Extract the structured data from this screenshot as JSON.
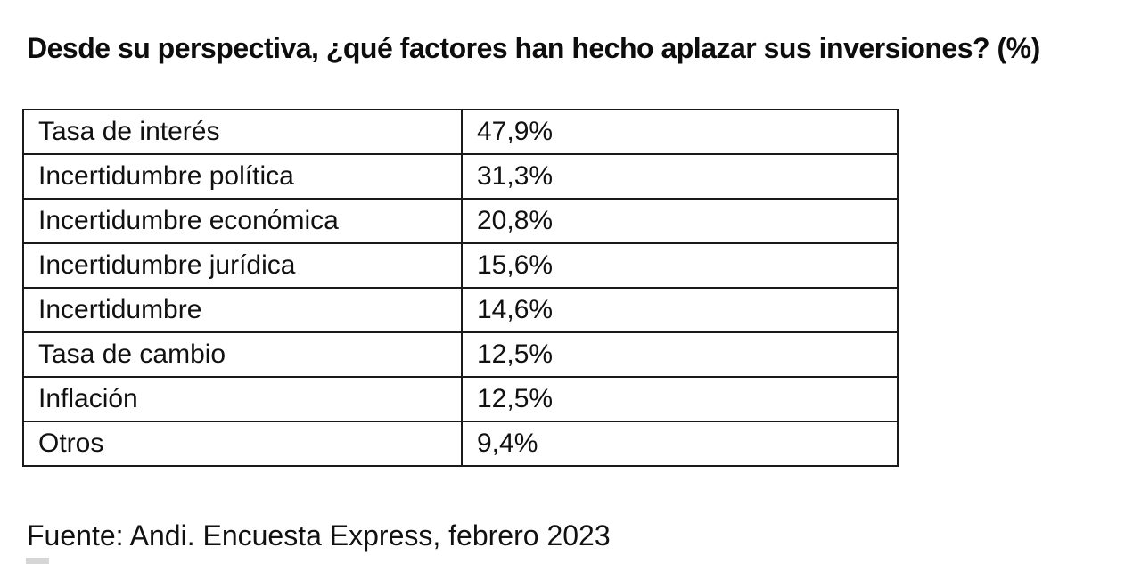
{
  "page": {
    "background": "#ffffff",
    "text_color": "#111111",
    "border_color": "#1a1a1a"
  },
  "title": "Desde su perspectiva, ¿qué factores han hecho aplazar sus inversiones? (%)",
  "table": {
    "rows": [
      {
        "factor": "Tasa de interés",
        "value": "47,9%"
      },
      {
        "factor": "Incertidumbre política",
        "value": "31,3%"
      },
      {
        "factor": "Incertidumbre económica",
        "value": "20,8%"
      },
      {
        "factor": "Incertidumbre jurídica",
        "value": "15,6%"
      },
      {
        "factor": "Incertidumbre",
        "value": "14,6%"
      },
      {
        "factor": "Tasa de cambio",
        "value": "12,5%"
      },
      {
        "factor": "Inflación",
        "value": "12,5%"
      },
      {
        "factor": "Otros",
        "value": "9,4%"
      }
    ]
  },
  "source": "Fuente: Andi. Encuesta Express, febrero 2023",
  "chart_data": {
    "type": "table",
    "title": "Desde su perspectiva, ¿qué factores han hecho aplazar sus inversiones? (%)",
    "categories": [
      "Tasa de interés",
      "Incertidumbre política",
      "Incertidumbre económica",
      "Incertidumbre jurídica",
      "Incertidumbre",
      "Tasa de cambio",
      "Inflación",
      "Otros"
    ],
    "values": [
      47.9,
      31.3,
      20.8,
      15.6,
      14.6,
      12.5,
      12.5,
      9.4
    ],
    "value_labels": [
      "47,9%",
      "31,3%",
      "20,8%",
      "15,6%",
      "14,6%",
      "12,5%",
      "12,5%",
      "9,4%"
    ],
    "value_format": "percent with comma decimal separator",
    "source": "Fuente: Andi. Encuesta Express, febrero 2023"
  }
}
